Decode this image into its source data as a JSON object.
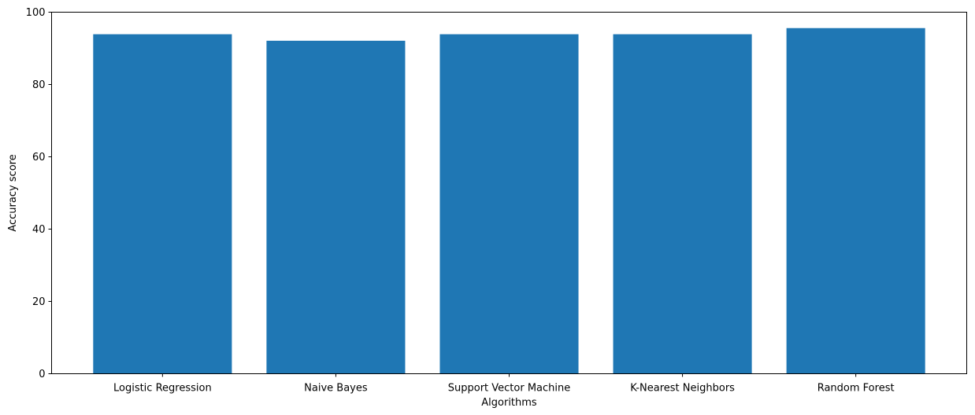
{
  "chart_data": {
    "type": "bar",
    "title": "",
    "xlabel": "Algorithms",
    "ylabel": "Accuracy score",
    "categories": [
      "Logistic Regression",
      "Naive Bayes",
      "Support Vector Machine",
      "K-Nearest Neighbors",
      "Random Forest"
    ],
    "values": [
      93.9,
      92.1,
      93.9,
      93.9,
      95.6
    ],
    "ylim": [
      0,
      100
    ],
    "yticks": [
      0,
      20,
      40,
      60,
      80,
      100
    ],
    "bar_color": "#1f77b4",
    "grid": false,
    "legend": "none"
  }
}
